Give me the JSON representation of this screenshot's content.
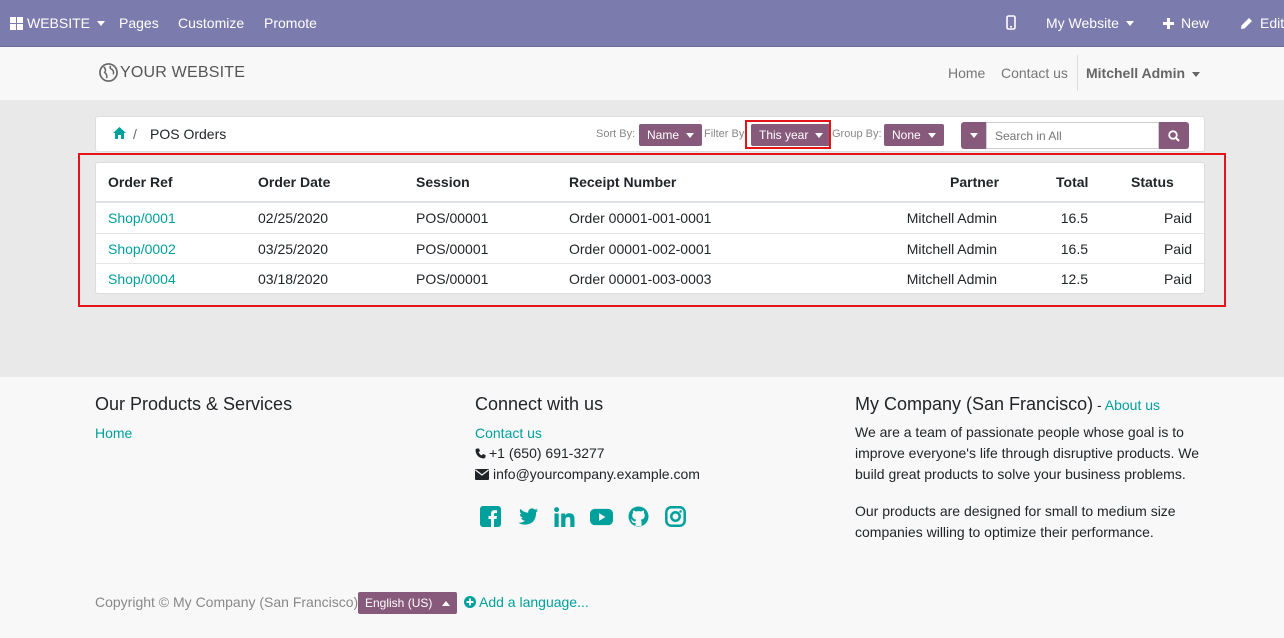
{
  "topbar": {
    "website_menu": "WEBSITE",
    "pages": "Pages",
    "customize": "Customize",
    "promote": "Promote",
    "my_website": "My Website",
    "new": "New",
    "edit": "Edit"
  },
  "header": {
    "logo_text": "YOUR WEBSITE",
    "nav": [
      "Home",
      "Contact us"
    ],
    "user": "Mitchell Admin"
  },
  "breadcrumb": {
    "current": "POS Orders"
  },
  "controls": {
    "sort_label": "Sort By:",
    "sort_value": "Name",
    "filter_label": "Filter By:",
    "filter_value": "This year",
    "group_label": "Group By:",
    "group_value": "None",
    "search_placeholder": "Search in All"
  },
  "table": {
    "columns": [
      "Order Ref",
      "Order Date",
      "Session",
      "Receipt Number",
      "Partner",
      "Total",
      "Status"
    ],
    "rows": [
      {
        "ref": "Shop/0001",
        "date": "02/25/2020",
        "session": "POS/00001",
        "receipt": "Order 00001-001-0001",
        "partner": "Mitchell Admin",
        "total": "16.5",
        "status": "Paid"
      },
      {
        "ref": "Shop/0002",
        "date": "03/25/2020",
        "session": "POS/00001",
        "receipt": "Order 00001-002-0001",
        "partner": "Mitchell Admin",
        "total": "16.5",
        "status": "Paid"
      },
      {
        "ref": "Shop/0004",
        "date": "03/18/2020",
        "session": "POS/00001",
        "receipt": "Order 00001-003-0003",
        "partner": "Mitchell Admin",
        "total": "12.5",
        "status": "Paid"
      }
    ]
  },
  "footer": {
    "col1_title": "Our Products & Services",
    "col1_link": "Home",
    "col2_title": "Connect with us",
    "col2_link": "Contact us",
    "phone": "+1 (650) 691-3277",
    "email": "info@yourcompany.example.com",
    "col3_title": "My Company (San Francisco)",
    "col3_sep": " - ",
    "col3_link": "About us",
    "para1_lines": [
      "We are a team of passionate people whose goal is to",
      "improve everyone's life through disruptive products. We",
      "build great products to solve your business problems."
    ],
    "para2_lines": [
      "Our products are designed for small to medium size",
      "companies willing to optimize their performance."
    ],
    "socials": [
      "facebook-icon",
      "twitter-icon",
      "linkedin-icon",
      "youtube-icon",
      "github-icon",
      "instagram-icon"
    ],
    "copyright": "Copyright © My Company (San Francisco)",
    "language": "English (US)",
    "add_language": "Add a language..."
  },
  "colors": {
    "topbar": "#7c7bad",
    "primary": "#875a7b",
    "link": "#00a09d",
    "highlight": "#e3141a"
  }
}
